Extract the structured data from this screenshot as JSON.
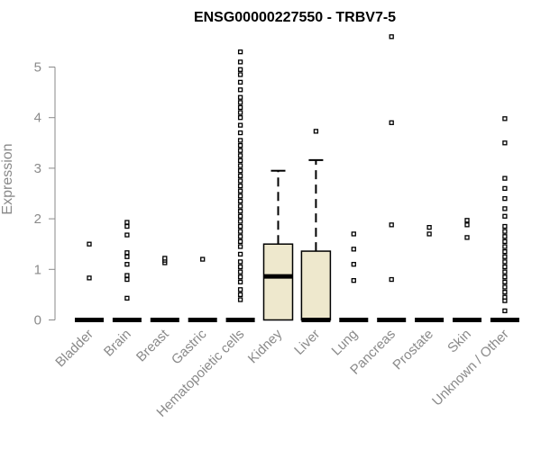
{
  "chart_data": {
    "type": "box",
    "title": "ENSG00000227550 - TRBV7-5",
    "ylabel": "Expression",
    "xlabel": "",
    "ylim": [
      0,
      5.6
    ],
    "yticks": [
      0,
      1,
      2,
      3,
      4,
      5
    ],
    "grid": false,
    "box_fill": "#eee8cd",
    "categories": [
      "Bladder",
      "Brain",
      "Breast",
      "Gastric",
      "Hematopoietic cells",
      "Kidney",
      "Liver",
      "Lung",
      "Pancreas",
      "Prostate",
      "Skin",
      "Unknown / Other"
    ],
    "boxes": [
      {
        "q1": 0,
        "median": 0,
        "q3": 0,
        "whisker_low": 0,
        "whisker_high": 0,
        "outliers": [
          0.83,
          1.5
        ]
      },
      {
        "q1": 0,
        "median": 0,
        "q3": 0,
        "whisker_low": 0,
        "whisker_high": 0,
        "outliers": [
          0.43,
          0.8,
          0.88,
          1.1,
          1.25,
          1.33,
          1.68,
          1.85,
          1.93
        ]
      },
      {
        "q1": 0,
        "median": 0,
        "q3": 0,
        "whisker_low": 0,
        "whisker_high": 0,
        "outliers": [
          1.13,
          1.18,
          1.22
        ]
      },
      {
        "q1": 0,
        "median": 0,
        "q3": 0,
        "whisker_low": 0,
        "whisker_high": 0,
        "outliers": [
          1.2
        ]
      },
      {
        "q1": 0,
        "median": 0,
        "q3": 0,
        "whisker_low": 0,
        "whisker_high": 0,
        "outliers": [
          0.4,
          0.5,
          0.6,
          0.75,
          0.85,
          0.95,
          1.05,
          1.15,
          1.3,
          1.45,
          1.55,
          1.65,
          1.75,
          1.85,
          1.95,
          2.05,
          2.15,
          2.25,
          2.35,
          2.45,
          2.55,
          2.65,
          2.75,
          2.85,
          2.95,
          3.05,
          3.15,
          3.25,
          3.35,
          3.45,
          3.55,
          3.7,
          3.85,
          4.0,
          4.1,
          4.2,
          4.3,
          4.4,
          4.55,
          4.7,
          4.85,
          4.95,
          5.1,
          5.3
        ]
      },
      {
        "q1": 0,
        "median": 0.86,
        "q3": 1.5,
        "whisker_low": 0,
        "whisker_high": 2.95,
        "outliers": []
      },
      {
        "q1": 0,
        "median": 0,
        "q3": 1.36,
        "whisker_low": 0,
        "whisker_high": 3.16,
        "outliers": [
          3.73
        ]
      },
      {
        "q1": 0,
        "median": 0,
        "q3": 0,
        "whisker_low": 0,
        "whisker_high": 0,
        "outliers": [
          0.78,
          1.1,
          1.4,
          1.7
        ]
      },
      {
        "q1": 0,
        "median": 0,
        "q3": 0,
        "whisker_low": 0,
        "whisker_high": 0,
        "outliers": [
          0.8,
          1.88,
          3.9,
          5.6
        ]
      },
      {
        "q1": 0,
        "median": 0,
        "q3": 0,
        "whisker_low": 0,
        "whisker_high": 0,
        "outliers": [
          1.7,
          1.83
        ]
      },
      {
        "q1": 0,
        "median": 0,
        "q3": 0,
        "whisker_low": 0,
        "whisker_high": 0,
        "outliers": [
          1.63,
          1.88,
          1.97
        ]
      },
      {
        "q1": 0,
        "median": 0,
        "q3": 0,
        "whisker_low": 0,
        "whisker_high": 0,
        "outliers": [
          0.18,
          0.38,
          0.45,
          0.55,
          0.65,
          0.75,
          0.85,
          0.95,
          1.05,
          1.15,
          1.25,
          1.35,
          1.45,
          1.55,
          1.65,
          1.75,
          1.85,
          2.05,
          2.2,
          2.4,
          2.6,
          2.8,
          3.5,
          3.98
        ]
      }
    ]
  }
}
